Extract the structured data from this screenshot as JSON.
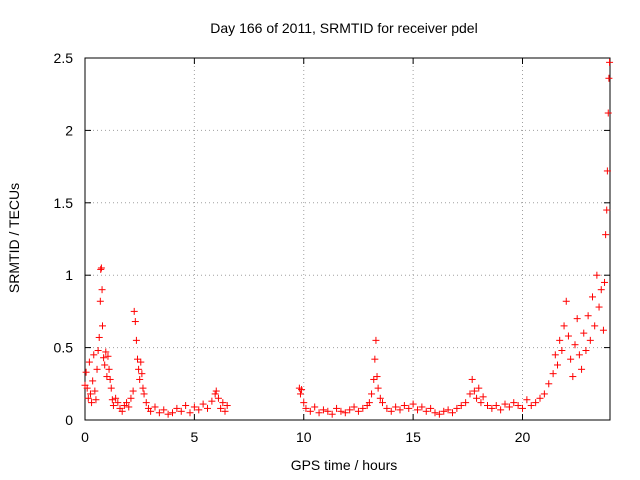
{
  "chart_data": {
    "type": "scatter",
    "title": "Day 166 of 2011, SRMTID for receiver pdel",
    "xlabel": "GPS time / hours",
    "ylabel": "SRMTID / TECUs",
    "xlim": [
      0,
      24
    ],
    "ylim": [
      0,
      2.5
    ],
    "x_ticks": [
      0,
      5,
      10,
      15,
      20
    ],
    "x_tick_labels": [
      "0",
      "5",
      "10",
      "15",
      "20"
    ],
    "y_ticks": [
      0,
      0.5,
      1,
      1.5,
      2,
      2.5
    ],
    "y_tick_labels": [
      "0",
      "0.5",
      "1",
      "1.5",
      "2",
      "2.5"
    ],
    "grid": true,
    "marker": "+",
    "series": [
      {
        "name": "pdel",
        "color": "#ff0000",
        "data_gap_hours": [
          6.6,
          9.8
        ],
        "points": [
          [
            0.0,
            0.24
          ],
          [
            0.05,
            0.33
          ],
          [
            0.1,
            0.22
          ],
          [
            0.15,
            0.15
          ],
          [
            0.2,
            0.4
          ],
          [
            0.25,
            0.18
          ],
          [
            0.3,
            0.12
          ],
          [
            0.35,
            0.27
          ],
          [
            0.4,
            0.45
          ],
          [
            0.45,
            0.2
          ],
          [
            0.5,
            0.14
          ],
          [
            0.55,
            0.35
          ],
          [
            0.6,
            0.48
          ],
          [
            0.65,
            0.57
          ],
          [
            0.7,
            0.82
          ],
          [
            0.72,
            1.04
          ],
          [
            0.75,
            1.05
          ],
          [
            0.78,
            0.9
          ],
          [
            0.8,
            0.65
          ],
          [
            0.85,
            0.43
          ],
          [
            0.9,
            0.38
          ],
          [
            0.95,
            0.47
          ],
          [
            1.0,
            0.3
          ],
          [
            1.05,
            0.44
          ],
          [
            1.1,
            0.35
          ],
          [
            1.15,
            0.28
          ],
          [
            1.2,
            0.22
          ],
          [
            1.25,
            0.14
          ],
          [
            1.3,
            0.1
          ],
          [
            1.4,
            0.15
          ],
          [
            1.5,
            0.12
          ],
          [
            1.6,
            0.08
          ],
          [
            1.7,
            0.06
          ],
          [
            1.8,
            0.1
          ],
          [
            1.9,
            0.12
          ],
          [
            2.0,
            0.09
          ],
          [
            2.1,
            0.15
          ],
          [
            2.2,
            0.2
          ],
          [
            2.25,
            0.75
          ],
          [
            2.3,
            0.68
          ],
          [
            2.35,
            0.55
          ],
          [
            2.4,
            0.42
          ],
          [
            2.45,
            0.35
          ],
          [
            2.5,
            0.28
          ],
          [
            2.55,
            0.4
          ],
          [
            2.6,
            0.32
          ],
          [
            2.65,
            0.22
          ],
          [
            2.7,
            0.18
          ],
          [
            2.8,
            0.12
          ],
          [
            2.9,
            0.08
          ],
          [
            3.0,
            0.06
          ],
          [
            3.2,
            0.09
          ],
          [
            3.4,
            0.05
          ],
          [
            3.6,
            0.07
          ],
          [
            3.8,
            0.04
          ],
          [
            4.0,
            0.05
          ],
          [
            4.2,
            0.08
          ],
          [
            4.4,
            0.06
          ],
          [
            4.6,
            0.1
          ],
          [
            4.8,
            0.05
          ],
          [
            5.0,
            0.09
          ],
          [
            5.2,
            0.07
          ],
          [
            5.4,
            0.11
          ],
          [
            5.6,
            0.08
          ],
          [
            5.8,
            0.13
          ],
          [
            5.95,
            0.18
          ],
          [
            6.0,
            0.2
          ],
          [
            6.1,
            0.15
          ],
          [
            6.2,
            0.08
          ],
          [
            6.3,
            0.12
          ],
          [
            6.4,
            0.06
          ],
          [
            6.5,
            0.1
          ],
          [
            9.8,
            0.22
          ],
          [
            9.85,
            0.18
          ],
          [
            9.9,
            0.21
          ],
          [
            10.0,
            0.12
          ],
          [
            10.1,
            0.08
          ],
          [
            10.3,
            0.06
          ],
          [
            10.5,
            0.09
          ],
          [
            10.7,
            0.05
          ],
          [
            10.9,
            0.07
          ],
          [
            11.1,
            0.06
          ],
          [
            11.3,
            0.04
          ],
          [
            11.5,
            0.08
          ],
          [
            11.7,
            0.06
          ],
          [
            11.9,
            0.05
          ],
          [
            12.1,
            0.07
          ],
          [
            12.3,
            0.09
          ],
          [
            12.5,
            0.06
          ],
          [
            12.7,
            0.08
          ],
          [
            12.9,
            0.1
          ],
          [
            13.0,
            0.12
          ],
          [
            13.1,
            0.18
          ],
          [
            13.2,
            0.28
          ],
          [
            13.25,
            0.42
          ],
          [
            13.3,
            0.55
          ],
          [
            13.35,
            0.3
          ],
          [
            13.4,
            0.22
          ],
          [
            13.5,
            0.15
          ],
          [
            13.6,
            0.12
          ],
          [
            13.8,
            0.08
          ],
          [
            14.0,
            0.06
          ],
          [
            14.2,
            0.09
          ],
          [
            14.4,
            0.07
          ],
          [
            14.6,
            0.1
          ],
          [
            14.8,
            0.08
          ],
          [
            15.0,
            0.11
          ],
          [
            15.2,
            0.07
          ],
          [
            15.4,
            0.09
          ],
          [
            15.6,
            0.06
          ],
          [
            15.8,
            0.08
          ],
          [
            16.0,
            0.05
          ],
          [
            16.2,
            0.04
          ],
          [
            16.4,
            0.06
          ],
          [
            16.6,
            0.07
          ],
          [
            16.8,
            0.05
          ],
          [
            17.0,
            0.08
          ],
          [
            17.2,
            0.1
          ],
          [
            17.4,
            0.12
          ],
          [
            17.6,
            0.18
          ],
          [
            17.7,
            0.28
          ],
          [
            17.8,
            0.2
          ],
          [
            17.9,
            0.15
          ],
          [
            18.0,
            0.22
          ],
          [
            18.1,
            0.12
          ],
          [
            18.2,
            0.16
          ],
          [
            18.4,
            0.1
          ],
          [
            18.6,
            0.08
          ],
          [
            18.8,
            0.1
          ],
          [
            19.0,
            0.07
          ],
          [
            19.2,
            0.11
          ],
          [
            19.4,
            0.09
          ],
          [
            19.6,
            0.12
          ],
          [
            19.8,
            0.1
          ],
          [
            20.0,
            0.08
          ],
          [
            20.2,
            0.14
          ],
          [
            20.4,
            0.1
          ],
          [
            20.6,
            0.12
          ],
          [
            20.8,
            0.15
          ],
          [
            21.0,
            0.18
          ],
          [
            21.2,
            0.25
          ],
          [
            21.4,
            0.32
          ],
          [
            21.5,
            0.45
          ],
          [
            21.6,
            0.38
          ],
          [
            21.7,
            0.55
          ],
          [
            21.8,
            0.48
          ],
          [
            21.9,
            0.65
          ],
          [
            22.0,
            0.82
          ],
          [
            22.1,
            0.58
          ],
          [
            22.2,
            0.42
          ],
          [
            22.3,
            0.3
          ],
          [
            22.4,
            0.52
          ],
          [
            22.5,
            0.7
          ],
          [
            22.6,
            0.45
          ],
          [
            22.7,
            0.35
          ],
          [
            22.8,
            0.6
          ],
          [
            22.9,
            0.48
          ],
          [
            23.0,
            0.72
          ],
          [
            23.1,
            0.55
          ],
          [
            23.2,
            0.85
          ],
          [
            23.3,
            0.65
          ],
          [
            23.4,
            1.0
          ],
          [
            23.5,
            0.78
          ],
          [
            23.6,
            0.9
          ],
          [
            23.7,
            0.62
          ],
          [
            23.75,
            0.95
          ],
          [
            23.8,
            1.28
          ],
          [
            23.85,
            1.45
          ],
          [
            23.88,
            1.72
          ],
          [
            23.92,
            2.12
          ],
          [
            23.95,
            2.36
          ],
          [
            23.98,
            2.47
          ]
        ]
      }
    ]
  }
}
